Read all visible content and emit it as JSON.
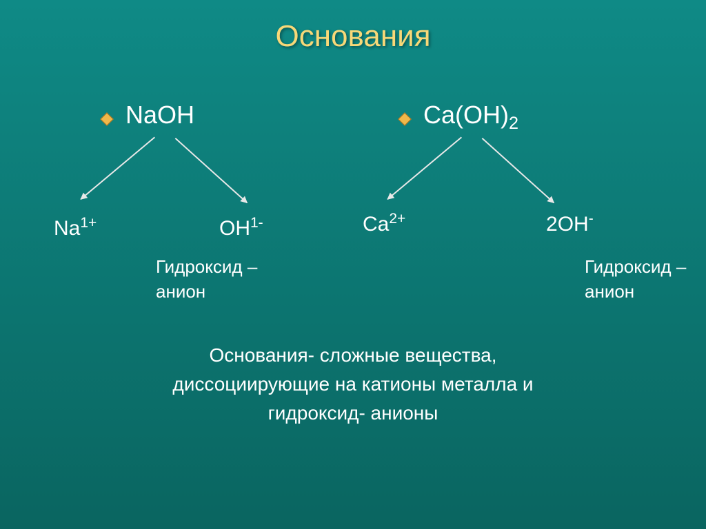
{
  "colors": {
    "bg_top": "#0f8a86",
    "bg_bottom": "#0a6560",
    "title": "#f8d878",
    "bullet_fill": "#f0b84a",
    "bullet_border": "#a07020",
    "text": "#ffffff",
    "arrow": "#e8e8e8"
  },
  "typography": {
    "title_size": 44,
    "formula_size": 36,
    "ion_size": 30,
    "label_size": 26,
    "definition_size": 28
  },
  "title": "Основания",
  "left": {
    "formula": "NaOH",
    "cation": {
      "base": "Na",
      "sup": "1+"
    },
    "anion": {
      "base": "OH",
      "sup": "1-"
    },
    "anion_label_line1": "Гидроксид –",
    "anion_label_line2": "анион"
  },
  "right": {
    "formula_base": "Ca(OH)",
    "formula_sub": "2",
    "cation": {
      "base": "Ca",
      "sup": "2+"
    },
    "anion_coeff": "2",
    "anion_base": "OH",
    "anion_sup": "-",
    "anion_label_line1": "Гидроксид –",
    "anion_label_line2": "анион"
  },
  "definition": {
    "line1": "Основания- сложные вещества,",
    "line2": "диссоциирующие на катионы металла  и",
    "line3": "гидроксид- анионы"
  }
}
